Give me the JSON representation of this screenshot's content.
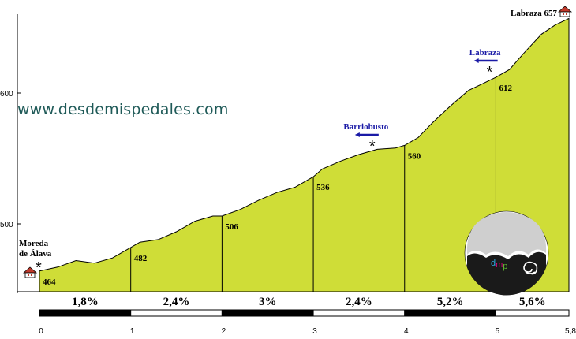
{
  "watermark": "www.desdemispedales.com",
  "chart_data": {
    "type": "area",
    "title": "",
    "xlabel": "",
    "ylabel": "",
    "xlim": [
      0,
      5.8
    ],
    "ylim": [
      440,
      665
    ],
    "y_ticks": [
      "500",
      "600"
    ],
    "x_ticks": [
      "0",
      "1",
      "2",
      "3",
      "4",
      "5",
      "5,8"
    ],
    "fill_color": "#cfdd37",
    "profile": {
      "x": [
        0,
        0.2,
        0.4,
        0.6,
        0.8,
        1.0,
        1.1,
        1.3,
        1.5,
        1.7,
        1.9,
        2.0,
        2.2,
        2.4,
        2.6,
        2.8,
        3.0,
        3.1,
        3.3,
        3.5,
        3.7,
        3.9,
        4.0,
        4.15,
        4.3,
        4.5,
        4.7,
        4.85,
        5.0,
        5.15,
        5.3,
        5.5,
        5.65,
        5.8
      ],
      "y": [
        464,
        467,
        472,
        470,
        474,
        482,
        486,
        488,
        494,
        502,
        506,
        506,
        511,
        518,
        524,
        528,
        536,
        542,
        548,
        553,
        557,
        558,
        560,
        566,
        577,
        590,
        602,
        607,
        612,
        618,
        630,
        645,
        652,
        657
      ]
    },
    "km_marks": [
      {
        "km": 0,
        "elevation": "464"
      },
      {
        "km": 1,
        "elevation": "482"
      },
      {
        "km": 2,
        "elevation": "506"
      },
      {
        "km": 3,
        "elevation": "536"
      },
      {
        "km": 4,
        "elevation": "560"
      },
      {
        "km": 5,
        "elevation": "612"
      }
    ],
    "segments": [
      {
        "from": 0,
        "to": 1,
        "label": "1,8%"
      },
      {
        "from": 1,
        "to": 2,
        "label": "2,4%"
      },
      {
        "from": 2,
        "to": 3,
        "label": "3%"
      },
      {
        "from": 3,
        "to": 4,
        "label": "2,4%"
      },
      {
        "from": 4,
        "to": 5,
        "label": "5,2%"
      },
      {
        "from": 5,
        "to": 5.8,
        "label": "5,6%"
      }
    ],
    "annotations": {
      "start": {
        "line1": "Moreda",
        "line2": "de Álava"
      },
      "summit": {
        "name": "Labraza",
        "elevation": "657"
      },
      "junctions": [
        {
          "label": "Barriobusto",
          "km": 3.75
        },
        {
          "label": "Labraza",
          "km": 4.95
        }
      ]
    },
    "logo": {
      "text": "dmp"
    }
  }
}
